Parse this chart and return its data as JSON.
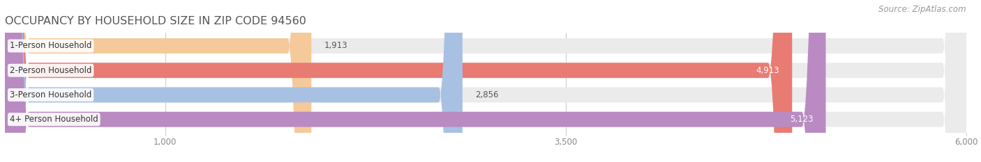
{
  "title": "OCCUPANCY BY HOUSEHOLD SIZE IN ZIP CODE 94560",
  "source": "Source: ZipAtlas.com",
  "categories": [
    "1-Person Household",
    "2-Person Household",
    "3-Person Household",
    "4+ Person Household"
  ],
  "values": [
    1913,
    4913,
    2856,
    5123
  ],
  "bar_colors": [
    "#f5c99a",
    "#e87b72",
    "#a8c1e2",
    "#b98bc2"
  ],
  "background_color": "#ffffff",
  "bar_bg_color": "#ebebeb",
  "xlim": [
    0,
    6000
  ],
  "xticks": [
    1000,
    3500,
    6000
  ],
  "bar_height": 0.62,
  "title_fontsize": 11.5,
  "label_fontsize": 8.5,
  "value_fontsize": 8.5,
  "source_fontsize": 8.5,
  "tick_fontsize": 8.5
}
